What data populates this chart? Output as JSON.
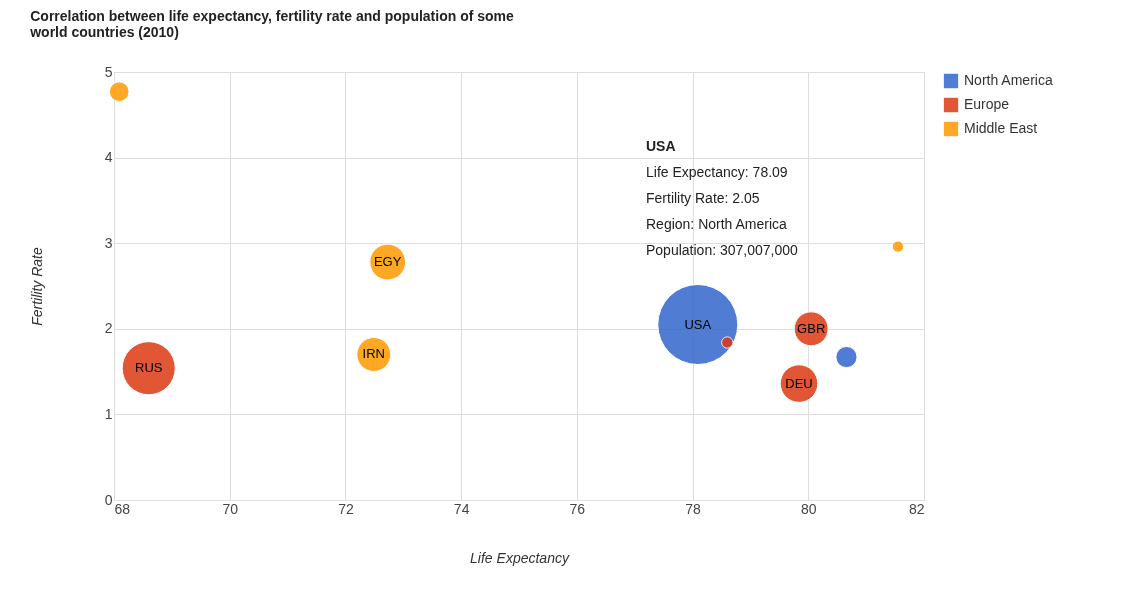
{
  "chart_data": {
    "type": "bubble",
    "title": "Correlation between life expectancy, fertility rate and population of some world countries (2010)",
    "xlabel": "Life Expectancy",
    "ylabel": "Fertility Rate",
    "series": [
      {
        "name": "North America",
        "color": "#3366cc",
        "x": [
          80.66,
          78.09
        ],
        "values": [
          1.67,
          2.05
        ],
        "sizes": [
          0.07,
          1
        ]
      },
      {
        "name": "Europe",
        "color": "#dc3912",
        "x": [
          79.84,
          78.6,
          80.05,
          68.6
        ],
        "values": [
          1.36,
          1.84,
          2.0,
          1.54
        ],
        "sizes": [
          0.22,
          0.02,
          0.18,
          0.44
        ]
      },
      {
        "name": "Middle East",
        "color": "#ff9900",
        "x": [
          72.73,
          72.49,
          68.09,
          81.55
        ],
        "values": [
          2.78,
          1.7,
          4.77,
          2.96
        ],
        "sizes": [
          0.2,
          0.18,
          0.06,
          0.02
        ]
      }
    ],
    "annotations": [
      {
        "text": "USA",
        "x": 78.09,
        "y": 2.05
      },
      {
        "text": "GBR",
        "x": 80.05,
        "y": 2.0
      },
      {
        "text": "DEU",
        "x": 79.84,
        "y": 1.36
      },
      {
        "text": "RUS",
        "x": 68.6,
        "y": 1.54
      },
      {
        "text": "IRN",
        "x": 72.49,
        "y": 1.7
      },
      {
        "text": "EGY",
        "x": 72.73,
        "y": 2.78
      },
      "USA",
      "Life Expectancy: 78.09",
      "Fertility Rate: 2.05",
      "Region: North America",
      "Population: 307,007,000"
    ],
    "xlim": [
      68,
      82
    ],
    "xticks": [
      68,
      70,
      72,
      74,
      76,
      78,
      80,
      82
    ],
    "ylim": [
      0,
      5
    ],
    "yticks": [
      0,
      1,
      2,
      3,
      4,
      5
    ],
    "grid": true,
    "legend": "top right"
  }
}
